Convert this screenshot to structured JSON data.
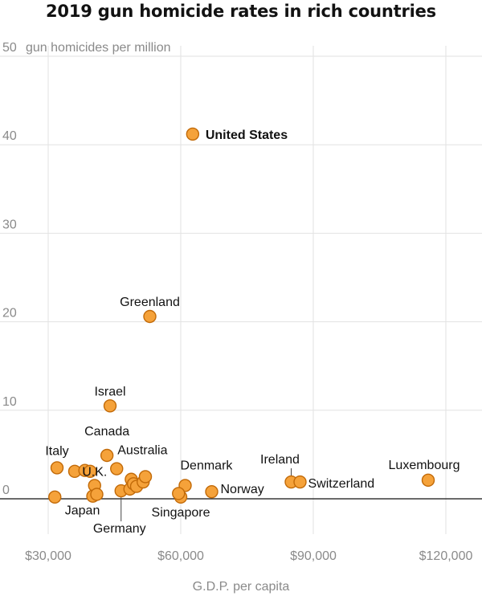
{
  "chart_data": {
    "type": "scatter",
    "title": "2019 gun homicide rates in rich countries",
    "ylabel": "gun homicides per million",
    "xlabel": "G.D.P. per capita",
    "xlim": [
      25000,
      128000
    ],
    "ylim": [
      -4,
      50
    ],
    "xticks": [
      {
        "value": 30000,
        "label": "$30,000"
      },
      {
        "value": 60000,
        "label": "$60,000"
      },
      {
        "value": 90000,
        "label": "$90,000"
      },
      {
        "value": 120000,
        "label": "$120,000"
      }
    ],
    "yticks": [
      {
        "value": 0,
        "label": "0"
      },
      {
        "value": 10,
        "label": "10"
      },
      {
        "value": 20,
        "label": "20"
      },
      {
        "value": 30,
        "label": "30"
      },
      {
        "value": 40,
        "label": "40"
      },
      {
        "value": 50,
        "label": "50"
      }
    ],
    "grid": true,
    "points": [
      {
        "label": "United States",
        "x": 62700,
        "y": 41.2,
        "highlight": true
      },
      {
        "label": "Greenland",
        "x": 53000,
        "y": 20.6
      },
      {
        "label": "Israel",
        "x": 44000,
        "y": 10.5
      },
      {
        "label": "Canada",
        "x": 43300,
        "y": 4.9
      },
      {
        "label": "Australia",
        "x": 45500,
        "y": 3.4
      },
      {
        "label": "Italy",
        "x": 32000,
        "y": 3.5
      },
      {
        "label": "U.K.",
        "x": 40500,
        "y": 1.5
      },
      {
        "label": "Japan",
        "x": 40100,
        "y": 0.3
      },
      {
        "label": "Germany",
        "x": 46500,
        "y": 0.9
      },
      {
        "label": "Denmark",
        "x": 61000,
        "y": 1.5
      },
      {
        "label": "Singapore",
        "x": 60000,
        "y": 0.2
      },
      {
        "label": "Norway",
        "x": 67000,
        "y": 0.8
      },
      {
        "label": "Ireland",
        "x": 85000,
        "y": 1.9
      },
      {
        "label": "Switzerland",
        "x": 87000,
        "y": 1.9
      },
      {
        "label": "Luxembourg",
        "x": 116000,
        "y": 2.1
      },
      {
        "label": "",
        "x": 31500,
        "y": 0.2
      },
      {
        "label": "",
        "x": 36000,
        "y": 3.1
      },
      {
        "label": "",
        "x": 38300,
        "y": 3.2
      },
      {
        "label": "",
        "x": 39500,
        "y": 3.1
      },
      {
        "label": "",
        "x": 41000,
        "y": 0.5
      },
      {
        "label": "",
        "x": 48500,
        "y": 1.1
      },
      {
        "label": "",
        "x": 48800,
        "y": 2.2
      },
      {
        "label": "",
        "x": 49300,
        "y": 1.7
      },
      {
        "label": "",
        "x": 50000,
        "y": 1.4
      },
      {
        "label": "",
        "x": 51500,
        "y": 1.9
      },
      {
        "label": "",
        "x": 52000,
        "y": 2.5
      },
      {
        "label": "",
        "x": 59500,
        "y": 0.6
      }
    ]
  }
}
